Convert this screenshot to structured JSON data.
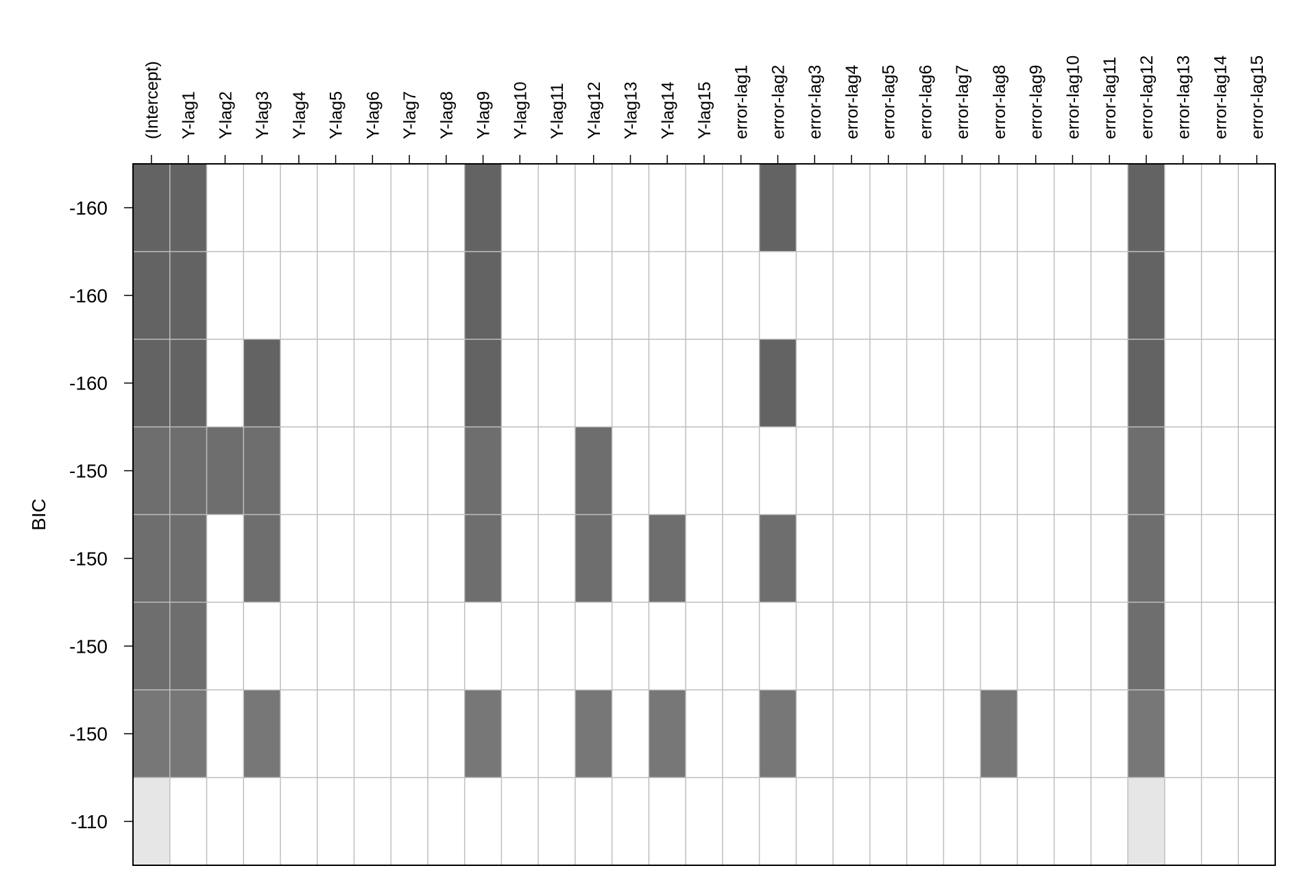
{
  "chart_data": {
    "type": "heatmap",
    "title": "",
    "xlabel": "",
    "ylabel": "BIC",
    "columns": [
      "(Intercept)",
      "Y-lag1",
      "Y-lag2",
      "Y-lag3",
      "Y-lag4",
      "Y-lag5",
      "Y-lag6",
      "Y-lag7",
      "Y-lag8",
      "Y-lag9",
      "Y-lag10",
      "Y-lag11",
      "Y-lag12",
      "Y-lag13",
      "Y-lag14",
      "Y-lag15",
      "error-lag1",
      "error-lag2",
      "error-lag3",
      "error-lag4",
      "error-lag5",
      "error-lag6",
      "error-lag7",
      "error-lag8",
      "error-lag9",
      "error-lag10",
      "error-lag11",
      "error-lag12",
      "error-lag13",
      "error-lag14",
      "error-lag15"
    ],
    "rows": [
      {
        "bic_label": "-160",
        "included": [
          "(Intercept)",
          "Y-lag1",
          "Y-lag9",
          "error-lag2",
          "error-lag12"
        ],
        "shade": "#636363"
      },
      {
        "bic_label": "-160",
        "included": [
          "(Intercept)",
          "Y-lag1",
          "Y-lag9",
          "error-lag12"
        ],
        "shade": "#636363"
      },
      {
        "bic_label": "-160",
        "included": [
          "(Intercept)",
          "Y-lag1",
          "Y-lag3",
          "Y-lag9",
          "error-lag2",
          "error-lag12"
        ],
        "shade": "#636363"
      },
      {
        "bic_label": "-150",
        "included": [
          "(Intercept)",
          "Y-lag1",
          "Y-lag2",
          "Y-lag3",
          "Y-lag9",
          "Y-lag12",
          "error-lag12"
        ],
        "shade": "#6e6e6e"
      },
      {
        "bic_label": "-150",
        "included": [
          "(Intercept)",
          "Y-lag1",
          "Y-lag3",
          "Y-lag9",
          "Y-lag12",
          "Y-lag14",
          "error-lag2",
          "error-lag12"
        ],
        "shade": "#6e6e6e"
      },
      {
        "bic_label": "-150",
        "included": [
          "(Intercept)",
          "Y-lag1",
          "error-lag12"
        ],
        "shade": "#6e6e6e"
      },
      {
        "bic_label": "-150",
        "included": [
          "(Intercept)",
          "Y-lag1",
          "Y-lag3",
          "Y-lag9",
          "Y-lag12",
          "Y-lag14",
          "error-lag2",
          "error-lag8",
          "error-lag12"
        ],
        "shade": "#777777"
      },
      {
        "bic_label": "-110",
        "included": [
          "(Intercept)",
          "error-lag12"
        ],
        "shade": "#e6e6e6"
      }
    ],
    "grid": true,
    "legend": "none",
    "colors": {
      "excluded": "#ffffff",
      "grid_line": "#bebebe",
      "frame": "#000000"
    }
  }
}
